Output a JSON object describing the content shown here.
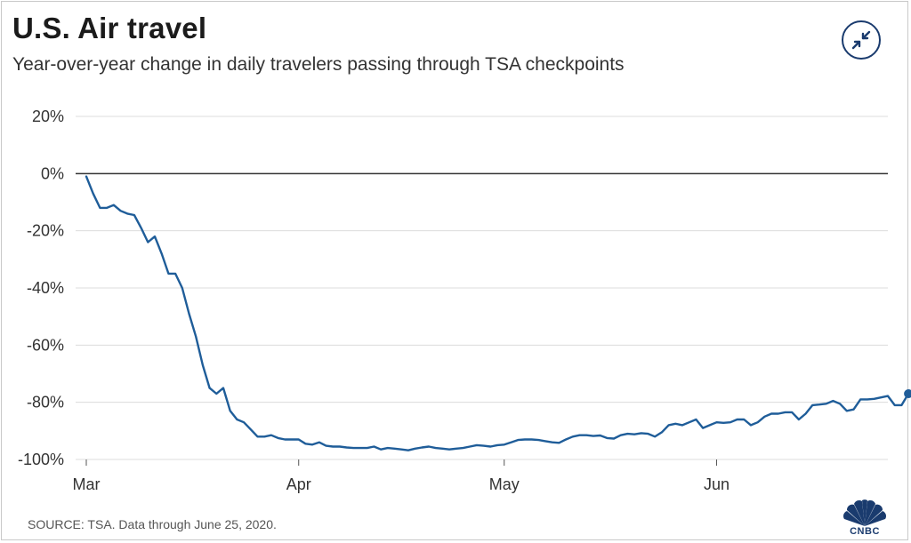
{
  "header": {
    "title": "U.S. Air travel",
    "subtitle": "Year-over-year change in daily travelers passing through TSA checkpoints"
  },
  "footer": {
    "source": "SOURCE: TSA. Data through June 25, 2020.",
    "logo_text": "CNBC"
  },
  "colors": {
    "line": "#1f5d99",
    "grid": "#dcdcdc",
    "zero_line": "#333333",
    "accent": "#1a3b6e"
  },
  "icons": {
    "collapse": "collapse-arrows-icon",
    "logo": "cnbc-peacock-logo"
  },
  "chart_data": {
    "type": "line",
    "title": "U.S. Air travel",
    "subtitle": "Year-over-year change in daily travelers passing through TSA checkpoints",
    "xlabel": "",
    "ylabel": "",
    "x_tick_labels": [
      "Mar",
      "Apr",
      "May",
      "Jun"
    ],
    "x_tick_day_index": [
      0,
      31,
      61,
      92
    ],
    "y_ticks": [
      20,
      0,
      -20,
      -40,
      -60,
      -80,
      -100
    ],
    "y_tick_labels": [
      "20%",
      "0%",
      "-20%",
      "-40%",
      "-60%",
      "-80%",
      "-100%"
    ],
    "ylim": [
      -100,
      20
    ],
    "xlim_day_index": [
      0,
      117
    ],
    "grid": true,
    "highlight_last_point": true,
    "series": [
      {
        "name": "Year-over-year change",
        "start_date": "2020-03-01",
        "values": [
          -1,
          -7,
          -12,
          -12,
          -11,
          -13,
          -14,
          -14.5,
          -19,
          -24,
          -22,
          -28,
          -35,
          -35,
          -40,
          -49,
          -57,
          -67,
          -75,
          -77,
          -75,
          -83,
          -86,
          -87,
          -89.5,
          -92,
          -92,
          -91.5,
          -92.5,
          -93,
          -93,
          -93,
          -94.5,
          -94.8,
          -94,
          -95.2,
          -95.5,
          -95.5,
          -95.8,
          -96,
          -96,
          -96,
          -95.5,
          -96.5,
          -96,
          -96.2,
          -96.5,
          -96.8,
          -96.2,
          -95.8,
          -95.5,
          -96,
          -96.2,
          -96.5,
          -96.2,
          -96,
          -95.5,
          -95,
          -95.2,
          -95.5,
          -95,
          -94.8,
          -94,
          -93.2,
          -93,
          -93,
          -93.2,
          -93.6,
          -94,
          -94.2,
          -93,
          -92,
          -91.5,
          -91.5,
          -91.8,
          -91.6,
          -92.5,
          -92.7,
          -91.5,
          -91,
          -91.2,
          -90.8,
          -91,
          -92,
          -90.5,
          -88,
          -87.5,
          -88,
          -87,
          -86,
          -89,
          -88,
          -87,
          -87.2,
          -87,
          -86,
          -86,
          -88,
          -87,
          -85,
          -84,
          -84,
          -83.5,
          -83.5,
          -86,
          -84,
          -81,
          -80.8,
          -80.5,
          -79.5,
          -80.5,
          -83,
          -82.5,
          -79,
          -79,
          -78.8,
          -78.3,
          -77.8,
          -81,
          -81,
          -77
        ]
      }
    ]
  }
}
